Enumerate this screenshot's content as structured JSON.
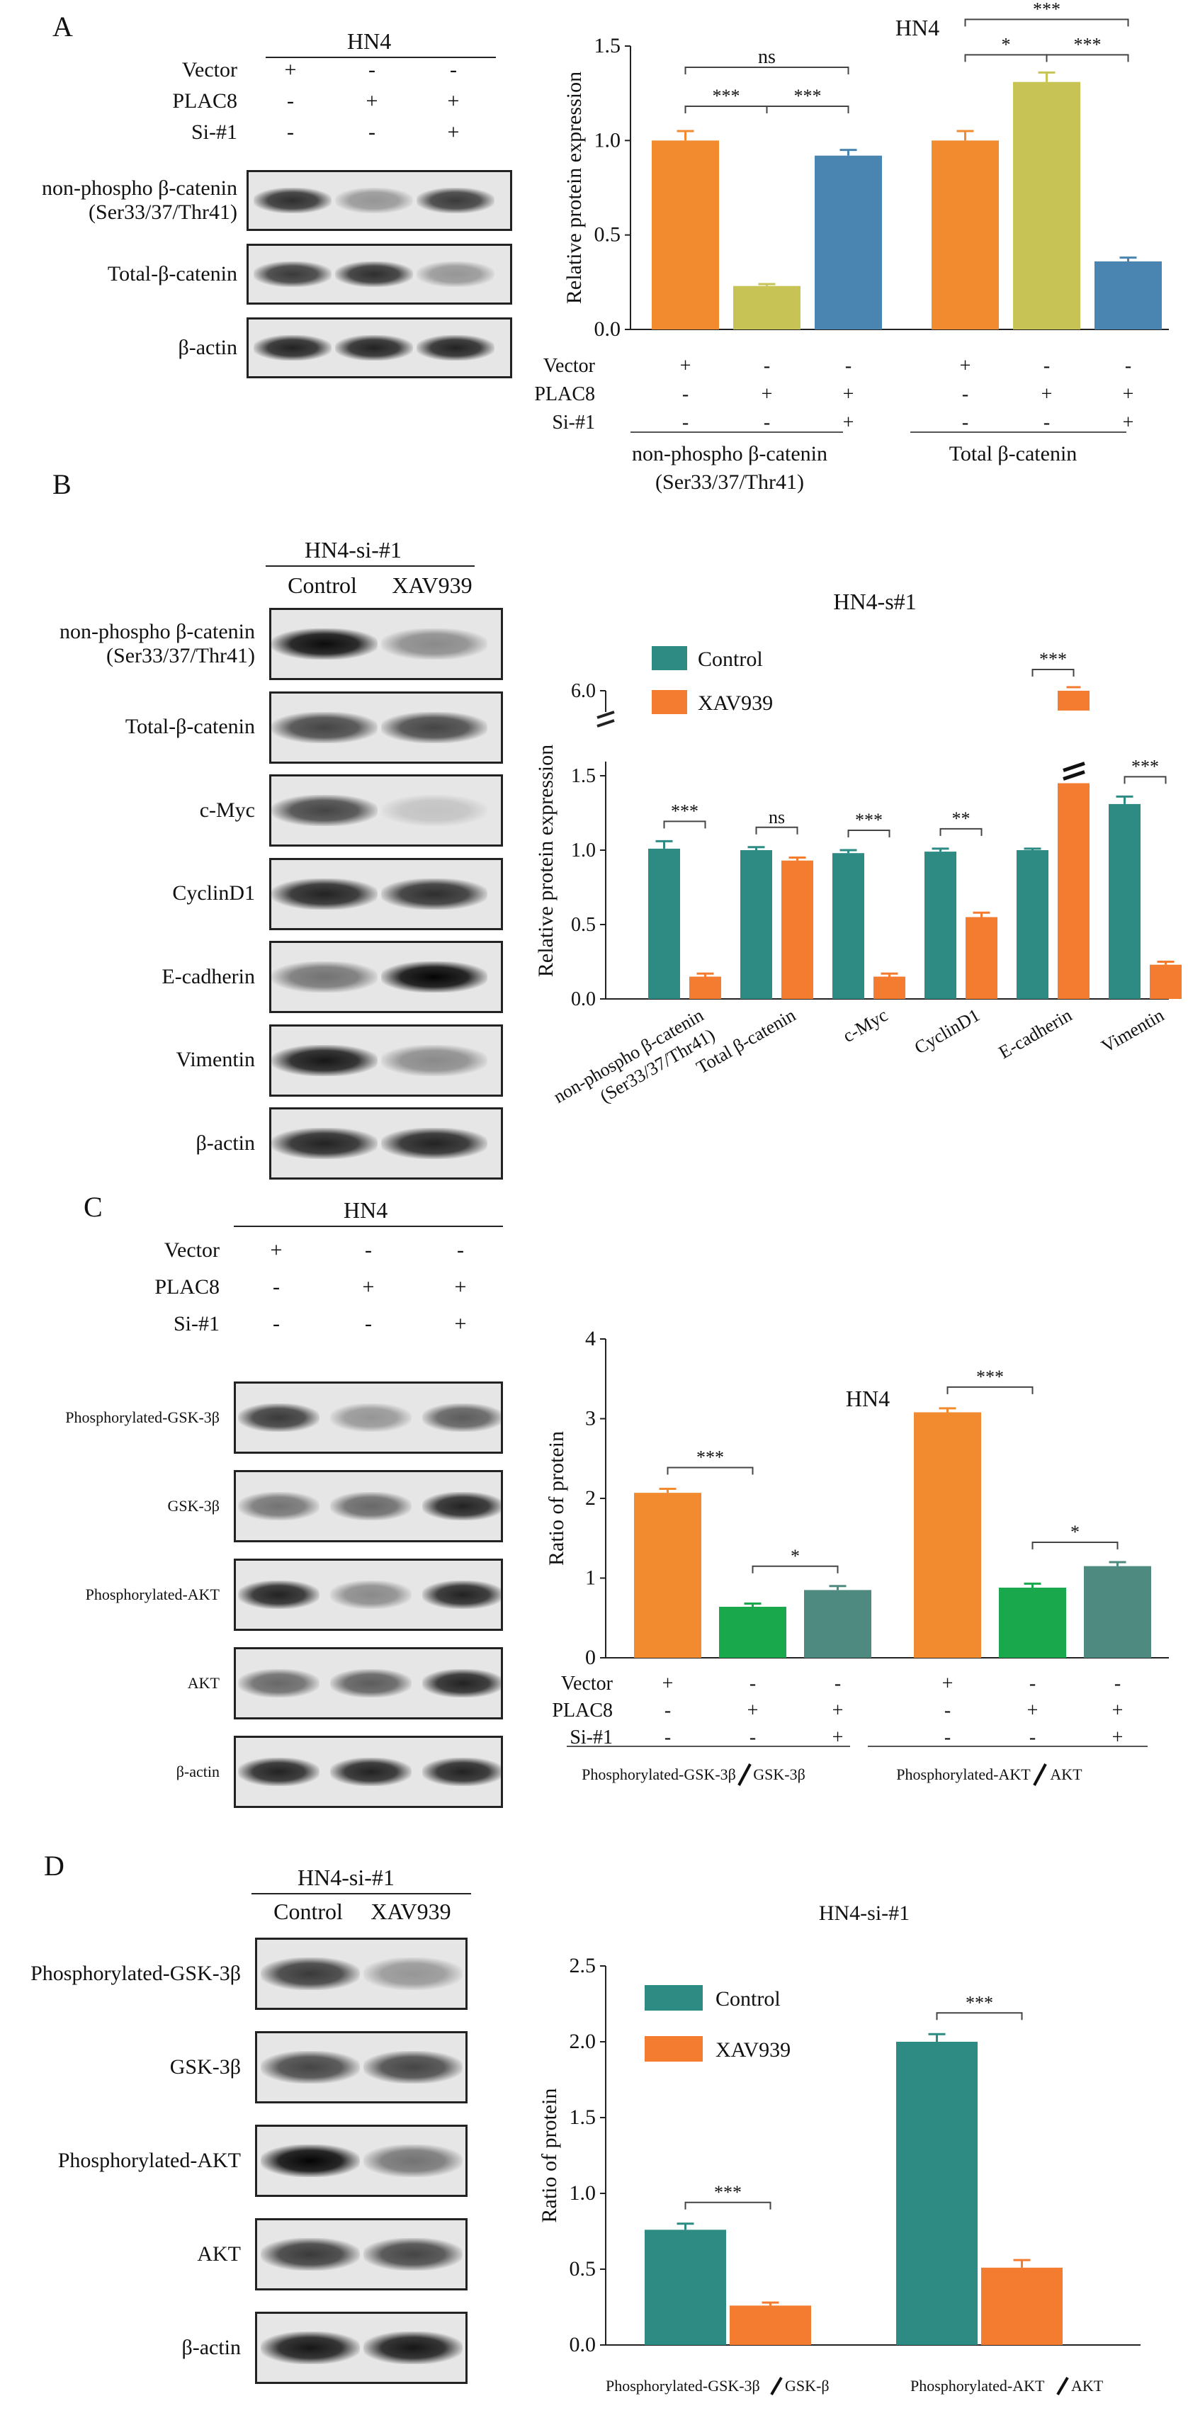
{
  "colors": {
    "orange": "#F28B30",
    "olive": "#C7C455",
    "steel": "#4A84B0",
    "teal": "#2E8B84",
    "orange2": "#F47C30",
    "green": "#1AA84C",
    "graygreen": "#4F8A80"
  },
  "panels": {
    "A": {
      "label": "A",
      "blot": {
        "cell_line": "HN4",
        "treatments": [
          {
            "name": "Vector",
            "signs": [
              "+",
              "-",
              "-"
            ]
          },
          {
            "name": "PLAC8",
            "signs": [
              "-",
              "+",
              "+"
            ]
          },
          {
            "name": "Si-#1",
            "signs": [
              "-",
              "-",
              "+"
            ]
          }
        ],
        "rows": [
          {
            "label": "non-phospho β-catenin",
            "label2": "(Ser33/37/Thr41)",
            "intensities": [
              0.8,
              0.35,
              0.75
            ]
          },
          {
            "label": "Total-β-catenin",
            "label2": "",
            "intensities": [
              0.75,
              0.8,
              0.35
            ]
          },
          {
            "label": "β-actin",
            "label2": "",
            "intensities": [
              0.85,
              0.85,
              0.85
            ]
          }
        ]
      },
      "chart_signs": [
        {
          "name": "Vector",
          "signs": [
            "+",
            "-",
            "-",
            "+",
            "-",
            "-"
          ]
        },
        {
          "name": "PLAC8",
          "signs": [
            "-",
            "+",
            "+",
            "-",
            "+",
            "+"
          ]
        },
        {
          "name": "Si-#1",
          "signs": [
            "-",
            "-",
            "+",
            "-",
            "-",
            "+"
          ]
        }
      ],
      "group_labels": [
        "non-phospho β-catenin",
        "(Ser33/37/Thr41)",
        "Total β-catenin"
      ],
      "sig": [
        "***",
        "***",
        "ns",
        "*",
        "***",
        "***"
      ]
    },
    "B": {
      "label": "B",
      "blot": {
        "cell_line": "HN4-si-#1",
        "columns": [
          "Control",
          "XAV939"
        ],
        "rows": [
          {
            "label": "non-phospho β-catenin",
            "label2": "(Ser33/37/Thr41)",
            "intensities": [
              0.95,
              0.4
            ]
          },
          {
            "label": "Total-β-catenin",
            "label2": "",
            "intensities": [
              0.7,
              0.7
            ]
          },
          {
            "label": "c-Myc",
            "label2": "",
            "intensities": [
              0.7,
              0.15
            ]
          },
          {
            "label": "CyclinD1",
            "label2": "",
            "intensities": [
              0.85,
              0.8
            ]
          },
          {
            "label": "E-cadherin",
            "label2": "",
            "intensities": [
              0.5,
              0.98
            ]
          },
          {
            "label": "Vimentin",
            "label2": "",
            "intensities": [
              0.9,
              0.4
            ]
          },
          {
            "label": "β-actin",
            "label2": "",
            "intensities": [
              0.85,
              0.85
            ]
          }
        ]
      },
      "sig": [
        "***",
        "ns",
        "***",
        "**",
        "***",
        "***"
      ]
    },
    "C": {
      "label": "C",
      "blot": {
        "cell_line": "HN4",
        "treatments": [
          {
            "name": "Vector",
            "signs": [
              "+",
              "-",
              "-"
            ]
          },
          {
            "name": "PLAC8",
            "signs": [
              "-",
              "+",
              "+"
            ]
          },
          {
            "name": "Si-#1",
            "signs": [
              "-",
              "-",
              "+"
            ]
          }
        ],
        "rows": [
          {
            "label": "Phosphorylated-GSK-3β",
            "intensities": [
              0.75,
              0.35,
              0.6
            ]
          },
          {
            "label": "GSK-3β",
            "intensities": [
              0.5,
              0.55,
              0.85
            ]
          },
          {
            "label": "Phosphorylated-AKT",
            "intensities": [
              0.85,
              0.4,
              0.85
            ]
          },
          {
            "label": "AKT",
            "intensities": [
              0.55,
              0.6,
              0.85
            ]
          },
          {
            "label": "β-actin",
            "intensities": [
              0.85,
              0.85,
              0.85
            ]
          }
        ]
      },
      "chart_signs": [
        {
          "name": "Vector",
          "signs": [
            "+",
            "-",
            "-",
            "+",
            "-",
            "-"
          ]
        },
        {
          "name": "PLAC8",
          "signs": [
            "-",
            "+",
            "+",
            "-",
            "+",
            "+"
          ]
        },
        {
          "name": "Si-#1",
          "signs": [
            "-",
            "-",
            "+",
            "-",
            "-",
            "+"
          ]
        }
      ],
      "group_labels": [
        "Phosphorylated-GSK-3β",
        "GSK-3β",
        "Phosphorylated-AKT",
        "AKT"
      ],
      "sig": [
        "***",
        "*",
        "***",
        "*"
      ]
    },
    "D": {
      "label": "D",
      "blot": {
        "cell_line": "HN4-si-#1",
        "columns": [
          "Control",
          "XAV939"
        ],
        "rows": [
          {
            "label": "Phosphorylated-GSK-3β",
            "intensities": [
              0.75,
              0.35
            ]
          },
          {
            "label": "GSK-3β",
            "intensities": [
              0.7,
              0.7
            ]
          },
          {
            "label": "Phosphorylated-AKT",
            "intensities": [
              0.98,
              0.5
            ]
          },
          {
            "label": "AKT",
            "intensities": [
              0.75,
              0.7
            ]
          },
          {
            "label": "β-actin",
            "intensities": [
              0.9,
              0.9
            ]
          }
        ]
      },
      "group_labels": [
        "Phosphorylated-GSK-3β",
        "GSK-β",
        "Phosphorylated-AKT",
        "AKT"
      ],
      "sig": [
        "***",
        "***"
      ]
    }
  },
  "chart_data": [
    {
      "type": "bar",
      "title": "HN4",
      "ylabel": "Relative protein expression",
      "ylim": [
        0,
        1.5
      ],
      "yticks": [
        "0.0",
        "0.5",
        "1.0",
        "1.5"
      ],
      "groups": [
        "non-phospho β-catenin (Ser33/37/Thr41)",
        "Total β-catenin"
      ],
      "bars": [
        {
          "group": 0,
          "value": 1.0,
          "error": 0.05,
          "color": "#F28B30"
        },
        {
          "group": 0,
          "value": 0.23,
          "error": 0.01,
          "color": "#C7C455"
        },
        {
          "group": 0,
          "value": 0.92,
          "error": 0.03,
          "color": "#4A84B0"
        },
        {
          "group": 1,
          "value": 1.0,
          "error": 0.05,
          "color": "#F28B30"
        },
        {
          "group": 1,
          "value": 1.31,
          "error": 0.05,
          "color": "#C7C455"
        },
        {
          "group": 1,
          "value": 0.36,
          "error": 0.02,
          "color": "#4A84B0"
        }
      ]
    },
    {
      "type": "bar",
      "title": "HN4-s#1",
      "ylabel": "Relative protein expression",
      "yticks": [
        "0.0",
        "0.5",
        "1.0",
        "1.5",
        "6.0"
      ],
      "categories": [
        "non-phospho β-catenin (Ser33/37/Thr41)",
        "Total β-catenin",
        "c-Myc",
        "CyclinD1",
        "E-cadherin",
        "Vimentin"
      ],
      "legend": "top-left",
      "series": [
        {
          "name": "Control",
          "color": "#2E8B84",
          "values": [
            1.01,
            1.0,
            0.98,
            0.99,
            1.0,
            1.31
          ],
          "errors": [
            0.05,
            0.02,
            0.02,
            0.02,
            0.01,
            0.05
          ]
        },
        {
          "name": "XAV939",
          "color": "#F47C30",
          "values": [
            0.15,
            0.93,
            0.15,
            0.55,
            5.95,
            0.23
          ],
          "errors": [
            0.02,
            0.02,
            0.02,
            0.03,
            0.05,
            0.02
          ]
        }
      ]
    },
    {
      "type": "bar",
      "title": "HN4",
      "ylabel": "Ratio of protein",
      "ylim": [
        0,
        4
      ],
      "yticks": [
        "0",
        "1",
        "2",
        "3",
        "4"
      ],
      "groups": [
        "Phosphorylated-GSK-3β/GSK-3β",
        "Phosphorylated-AKT/AKT"
      ],
      "bars": [
        {
          "group": 0,
          "value": 2.07,
          "error": 0.05,
          "color": "#F28B30"
        },
        {
          "group": 0,
          "value": 0.64,
          "error": 0.04,
          "color": "#1AA84C"
        },
        {
          "group": 0,
          "value": 0.85,
          "error": 0.05,
          "color": "#4F8A80"
        },
        {
          "group": 1,
          "value": 3.08,
          "error": 0.05,
          "color": "#F28B30"
        },
        {
          "group": 1,
          "value": 0.88,
          "error": 0.05,
          "color": "#1AA84C"
        },
        {
          "group": 1,
          "value": 1.15,
          "error": 0.05,
          "color": "#4F8A80"
        }
      ]
    },
    {
      "type": "bar",
      "title": "HN4-si-#1",
      "ylabel": "Ratio of protein",
      "ylim": [
        0,
        2.5
      ],
      "yticks": [
        "0.0",
        "0.5",
        "1.0",
        "1.5",
        "2.0",
        "2.5"
      ],
      "categories": [
        "Phosphorylated-GSK-3β/GSK-β",
        "Phosphorylated-AKT/AKT"
      ],
      "legend": "top-left",
      "series": [
        {
          "name": "Control",
          "color": "#2E8B84",
          "values": [
            0.76,
            2.0
          ],
          "errors": [
            0.04,
            0.05
          ]
        },
        {
          "name": "XAV939",
          "color": "#F47C30",
          "values": [
            0.26,
            0.51
          ],
          "errors": [
            0.02,
            0.05
          ]
        }
      ]
    }
  ]
}
